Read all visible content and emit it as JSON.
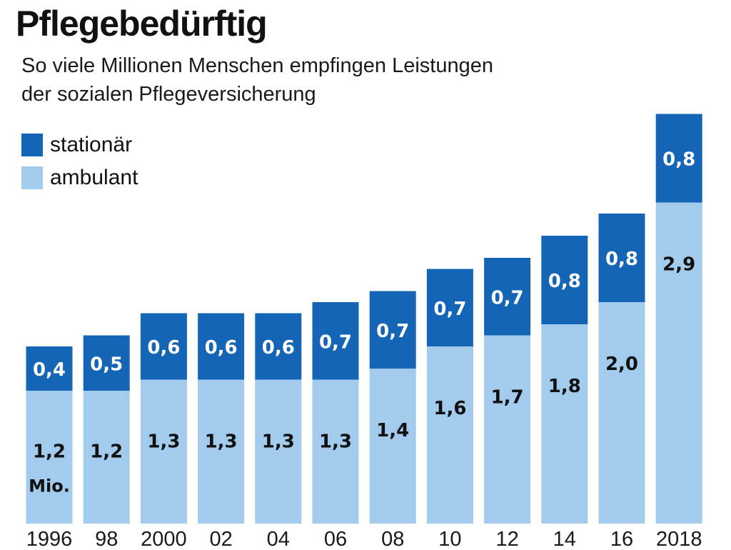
{
  "title": "Pflegebedürftig",
  "subtitle_lines": [
    "So viele Millionen Menschen empfingen Leistungen",
    "der sozialen Pflegeversicherung"
  ],
  "legend": [
    {
      "label": "stationär",
      "color": "#1565b7"
    },
    {
      "label": "ambulant",
      "color": "#a2cbed"
    }
  ],
  "unit_note": "Mio.",
  "chart_data": {
    "type": "bar",
    "stacked": true,
    "categories": [
      "1996",
      "98",
      "2000",
      "02",
      "04",
      "06",
      "08",
      "10",
      "12",
      "14",
      "16",
      "2018"
    ],
    "series": [
      {
        "name": "ambulant",
        "color": "#a2cbed",
        "values": [
          1.2,
          1.2,
          1.3,
          1.3,
          1.3,
          1.3,
          1.4,
          1.6,
          1.7,
          1.8,
          2.0,
          2.9
        ],
        "labels": [
          "1,2",
          "1,2",
          "1,3",
          "1,3",
          "1,3",
          "1,3",
          "1,4",
          "1,6",
          "1,7",
          "1,8",
          "2,0",
          "2,9"
        ]
      },
      {
        "name": "stationär",
        "color": "#1565b7",
        "values": [
          0.4,
          0.5,
          0.6,
          0.6,
          0.6,
          0.7,
          0.7,
          0.7,
          0.7,
          0.8,
          0.8,
          0.8
        ],
        "labels": [
          "0,4",
          "0,5",
          "0,6",
          "0,6",
          "0,6",
          "0,7",
          "0,7",
          "0,7",
          "0,7",
          "0,8",
          "0,8",
          "0,8"
        ]
      }
    ],
    "ylim": [
      0,
      3.8
    ],
    "grid": false,
    "legend_position": "top-left"
  }
}
